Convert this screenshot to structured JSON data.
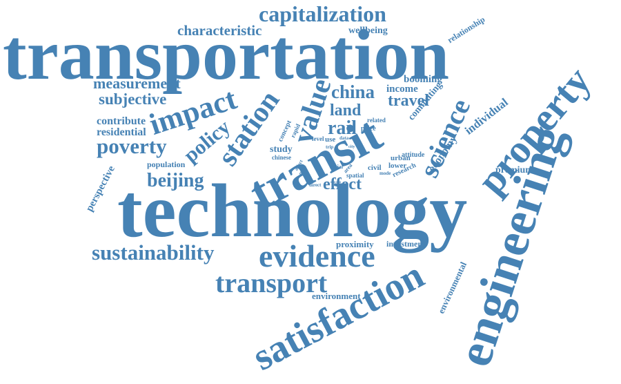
{
  "colors": {
    "word": "#4682b4",
    "background": "#ffffff"
  },
  "words": [
    "transportation",
    "technology",
    "engineering",
    "transit",
    "satisfaction",
    "property",
    "evidence",
    "transport",
    "sustainability",
    "capitalization",
    "impact",
    "station",
    "value",
    "science",
    "poverty",
    "policy",
    "beijing",
    "characteristic",
    "measurement",
    "subjective",
    "china",
    "land",
    "travel",
    "rail",
    "effect",
    "residential",
    "contribute",
    "perspective",
    "population",
    "study",
    "economy",
    "individual",
    "premium",
    "proximity",
    "investment",
    "environment",
    "environmental",
    "commuting",
    "income",
    "booming",
    "wellbeing",
    "relationship",
    "urban",
    "lower",
    "civil",
    "research",
    "attitude",
    "price",
    "related",
    "concept",
    "rapid",
    "level",
    "use",
    "data",
    "social",
    "area",
    "trip",
    "city",
    "spatial",
    "mode",
    "chinese",
    "more",
    "affect",
    "direct"
  ]
}
